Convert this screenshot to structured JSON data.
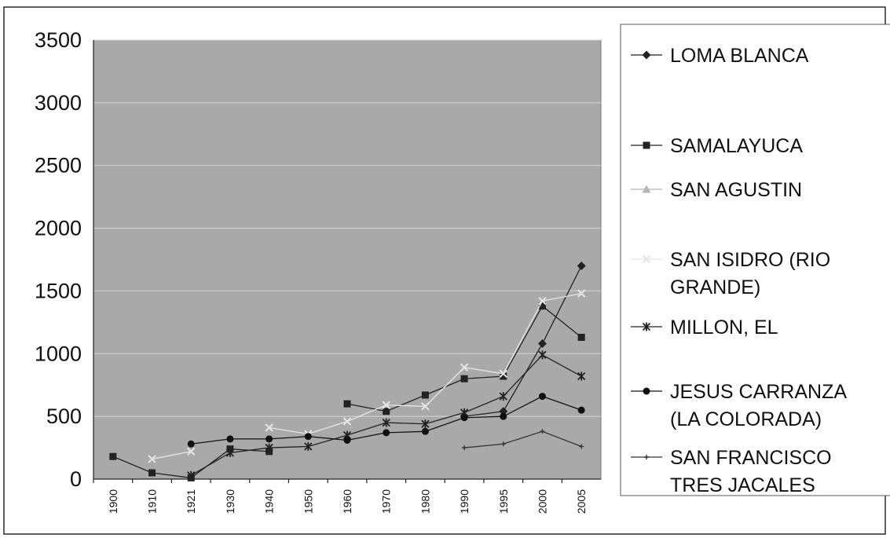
{
  "chart_data": {
    "type": "line",
    "title": "",
    "xlabel": "",
    "ylabel": "",
    "categories": [
      "1900",
      "1910",
      "1921",
      "1930",
      "1940",
      "1950",
      "1960",
      "1970",
      "1980",
      "1990",
      "1995",
      "2000",
      "2005"
    ],
    "ylim": [
      0,
      3500
    ],
    "yticks": [
      "0",
      "500",
      "1000",
      "1500",
      "2000",
      "2500",
      "3000",
      "3500"
    ],
    "grid": true,
    "legend_position": "right",
    "series": [
      {
        "name": "LOMA BLANCA",
        "marker": "diamond",
        "color": "#222222",
        "values": [
          null,
          null,
          null,
          null,
          null,
          null,
          null,
          null,
          null,
          500,
          540,
          1080,
          1700
        ]
      },
      {
        "name": "SAMALAYUCA",
        "marker": "square",
        "color": "#222222",
        "values": [
          180,
          50,
          10,
          240,
          220,
          null,
          600,
          540,
          670,
          800,
          820,
          1380,
          1130
        ]
      },
      {
        "name": "SAN AGUSTIN",
        "marker": "triangle",
        "color": "#b4b4b4",
        "values": [
          null,
          null,
          null,
          null,
          null,
          null,
          null,
          null,
          null,
          null,
          null,
          null,
          null
        ]
      },
      {
        "name": "SAN ISIDRO (RIO GRANDE)",
        "marker": "x",
        "color": "#e6e6e6",
        "values": [
          null,
          160,
          220,
          null,
          410,
          360,
          460,
          590,
          580,
          890,
          840,
          1420,
          1480
        ]
      },
      {
        "name": "MILLON, EL",
        "marker": "star",
        "color": "#222222",
        "values": [
          null,
          null,
          30,
          210,
          250,
          260,
          350,
          450,
          440,
          530,
          660,
          990,
          820
        ]
      },
      {
        "name": "JESUS CARRANZA (LA COLORADA)",
        "marker": "circle",
        "color": "#111111",
        "values": [
          null,
          null,
          280,
          320,
          320,
          340,
          310,
          370,
          380,
          490,
          500,
          660,
          550
        ]
      },
      {
        "name": "SAN FRANCISCO TRES JACALES",
        "marker": "plus",
        "color": "#333333",
        "values": [
          null,
          null,
          null,
          null,
          null,
          null,
          null,
          null,
          null,
          250,
          280,
          380,
          260
        ]
      }
    ],
    "legend_lines": [
      [
        "LOMA BLANCA"
      ],
      [
        "SAMALAYUCA"
      ],
      [
        "SAN AGUSTIN"
      ],
      [
        "SAN ISIDRO (RIO",
        "GRANDE)"
      ],
      [
        "MILLON, EL"
      ],
      [
        "JESUS CARRANZA",
        "(LA COLORADA)"
      ],
      [
        "SAN FRANCISCO",
        "TRES JACALES"
      ]
    ]
  }
}
